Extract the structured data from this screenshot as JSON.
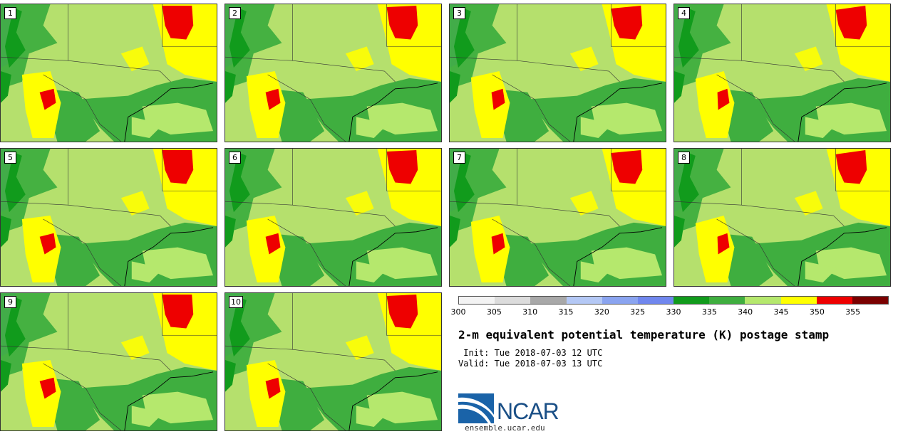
{
  "panels": [
    {
      "label": "1"
    },
    {
      "label": "2"
    },
    {
      "label": "3"
    },
    {
      "label": "4"
    },
    {
      "label": "5"
    },
    {
      "label": "6"
    },
    {
      "label": "7"
    },
    {
      "label": "8"
    },
    {
      "label": "9"
    },
    {
      "label": "10"
    }
  ],
  "colorbar": {
    "colors": [
      "#f3f3f3",
      "#dcdcdc",
      "#a8a8a8",
      "#b4c8f5",
      "#8aa4f0",
      "#7087ee",
      "#119b1c",
      "#3fae3f",
      "#b5e86d",
      "#ffff00",
      "#ee0000",
      "#7a0000"
    ],
    "ticks": [
      "300",
      "305",
      "310",
      "315",
      "320",
      "325",
      "330",
      "335",
      "340",
      "345",
      "350",
      "355"
    ]
  },
  "title": "2-m equivalent potential temperature (K) postage stamp",
  "init": " Init: Tue 2018-07-03 12 UTC",
  "valid": "Valid: Tue 2018-07-03 13 UTC",
  "logo_text": "NCAR",
  "site": "ensemble.ucar.edu"
}
